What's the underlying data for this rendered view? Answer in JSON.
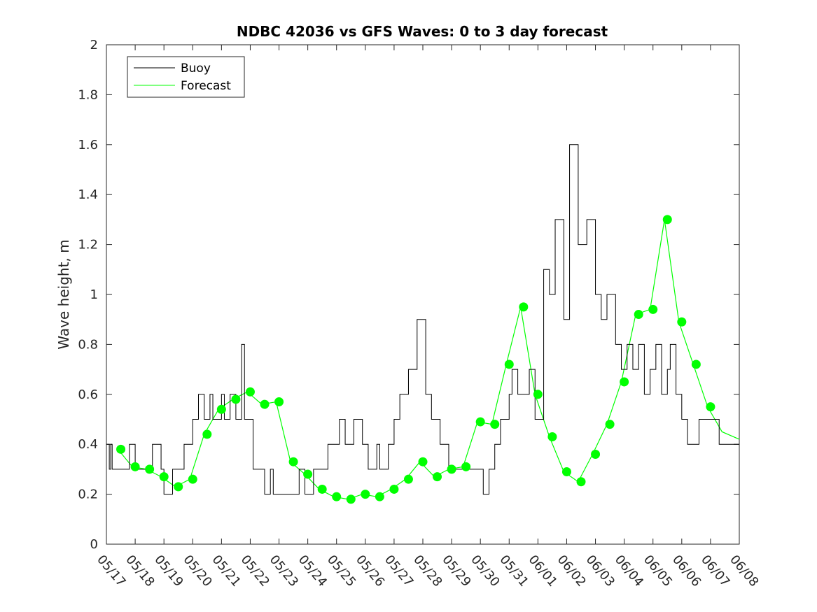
{
  "chart_data": {
    "type": "line",
    "title": "NDBC 42036 vs GFS Waves: 0 to 3 day forecast",
    "xlabel": "",
    "ylabel": "Wave height, m",
    "xlim": [
      "05/17",
      "06/08"
    ],
    "ylim": [
      0,
      2
    ],
    "x_ticks": [
      "05/17",
      "05/18",
      "05/19",
      "05/20",
      "05/21",
      "05/22",
      "05/23",
      "05/24",
      "05/25",
      "05/26",
      "05/27",
      "05/28",
      "05/29",
      "05/30",
      "05/31",
      "06/01",
      "06/02",
      "06/03",
      "06/04",
      "06/05",
      "06/06",
      "06/07",
      "06/08"
    ],
    "y_ticks": [
      0,
      0.2,
      0.4,
      0.6,
      0.8,
      1,
      1.2,
      1.4,
      1.6,
      1.8,
      2
    ],
    "y_tick_labels": [
      "0",
      "0.2",
      "0.4",
      "0.6",
      "0.8",
      "1",
      "1.2",
      "1.4",
      "1.6",
      "1.8",
      "2"
    ],
    "legend": {
      "position": "top-left",
      "entries": [
        "Buoy",
        "Forecast"
      ]
    },
    "colors": {
      "buoy": "#000000",
      "forecast": "#00ff00"
    },
    "buoy": {
      "name": "Buoy",
      "x": [
        0,
        0.1,
        0.15,
        0.2,
        0.3,
        0.5,
        0.8,
        1.0,
        1.3,
        1.5,
        1.6,
        1.9,
        2.0,
        2.3,
        2.5,
        2.7,
        3.0,
        3.1,
        3.2,
        3.4,
        3.6,
        3.7,
        3.9,
        4.0,
        4.1,
        4.3,
        4.5,
        4.7,
        4.8,
        5.1,
        5.3,
        5.5,
        5.7,
        5.8,
        6.0,
        6.1,
        6.3,
        6.5,
        6.7,
        6.9,
        7.0,
        7.2,
        7.5,
        7.7,
        7.9,
        8.1,
        8.3,
        8.6,
        8.9,
        9.1,
        9.4,
        9.5,
        9.8,
        10.0,
        10.2,
        10.5,
        10.8,
        11.1,
        11.3,
        11.6,
        11.9,
        12.2,
        12.6,
        12.9,
        13.1,
        13.3,
        13.5,
        13.7,
        14.0,
        14.1,
        14.3,
        14.5,
        14.7,
        14.9,
        15.0,
        15.2,
        15.4,
        15.6,
        15.9,
        16.1,
        16.4,
        16.7,
        17.0,
        17.2,
        17.4,
        17.7,
        17.9,
        18.1,
        18.3,
        18.5,
        18.7,
        18.9,
        19.1,
        19.3,
        19.5,
        19.6,
        19.8,
        20.0,
        20.2,
        20.4,
        20.6,
        20.8,
        21.0,
        21.3,
        21.6,
        22.0
      ],
      "y": [
        0.4,
        0.3,
        0.4,
        0.3,
        0.3,
        0.3,
        0.4,
        0.3,
        0.3,
        0.3,
        0.4,
        0.3,
        0.2,
        0.3,
        0.3,
        0.4,
        0.5,
        0.5,
        0.6,
        0.5,
        0.6,
        0.5,
        0.5,
        0.6,
        0.5,
        0.6,
        0.5,
        0.8,
        0.5,
        0.3,
        0.3,
        0.2,
        0.3,
        0.2,
        0.2,
        0.2,
        0.2,
        0.2,
        0.3,
        0.2,
        0.2,
        0.3,
        0.3,
        0.4,
        0.4,
        0.5,
        0.4,
        0.5,
        0.4,
        0.3,
        0.4,
        0.3,
        0.4,
        0.5,
        0.6,
        0.7,
        0.9,
        0.6,
        0.5,
        0.4,
        0.3,
        0.3,
        0.3,
        0.3,
        0.2,
        0.3,
        0.4,
        0.5,
        0.6,
        0.7,
        0.6,
        0.6,
        0.7,
        0.5,
        0.5,
        1.1,
        1.0,
        1.3,
        0.9,
        1.6,
        1.2,
        1.3,
        1.0,
        0.9,
        1.0,
        0.8,
        0.7,
        0.8,
        0.7,
        0.8,
        0.6,
        0.7,
        0.8,
        0.6,
        0.7,
        0.8,
        0.6,
        0.5,
        0.4,
        0.4,
        0.5,
        0.5,
        0.5,
        0.4,
        0.4,
        0.4
      ]
    },
    "forecast": {
      "name": "Forecast",
      "x": [
        0.4,
        0.9,
        1.4,
        1.9,
        2.4,
        2.9,
        3.4,
        3.9,
        4.4,
        4.9,
        5.4,
        5.9,
        6.4,
        6.9,
        7.4,
        7.9,
        8.4,
        8.9,
        9.4,
        9.9,
        10.4,
        10.9,
        11.4,
        11.9,
        12.4,
        12.9,
        13.4,
        13.9,
        14.4,
        14.9,
        15.4,
        15.9,
        16.4,
        16.9,
        17.4,
        17.9,
        18.4,
        18.9,
        19.4,
        19.9,
        20.4,
        20.9,
        21.4,
        22.0
      ],
      "y": [
        0.38,
        0.31,
        0.3,
        0.27,
        0.23,
        0.26,
        0.44,
        0.54,
        0.58,
        0.61,
        0.56,
        0.57,
        0.33,
        0.28,
        0.22,
        0.19,
        0.18,
        0.2,
        0.19,
        0.22,
        0.26,
        0.33,
        0.27,
        0.3,
        0.31,
        0.49,
        0.48,
        0.72,
        0.95,
        0.6,
        0.43,
        0.29,
        0.25,
        0.36,
        0.48,
        0.65,
        0.92,
        0.94,
        1.3,
        0.89,
        0.72,
        0.55,
        0.45,
        0.42
      ],
      "markers_x": [
        0.5,
        1.0,
        1.5,
        2.0,
        2.5,
        3.0,
        3.5,
        4.0,
        4.5,
        5.0,
        5.5,
        6.0,
        6.5,
        7.0,
        7.5,
        8.0,
        8.5,
        9.0,
        9.5,
        10.0,
        10.5,
        11.0,
        11.5,
        12.0,
        12.5,
        13.0,
        13.5,
        14.0,
        14.5,
        15.0,
        15.5,
        16.0,
        16.5,
        17.0,
        17.5,
        18.0,
        18.5,
        19.0,
        19.5,
        20.0,
        20.5,
        21.0
      ],
      "markers_y": [
        0.38,
        0.31,
        0.3,
        0.27,
        0.23,
        0.26,
        0.44,
        0.54,
        0.58,
        0.61,
        0.56,
        0.57,
        0.33,
        0.28,
        0.22,
        0.19,
        0.18,
        0.2,
        0.19,
        0.22,
        0.26,
        0.33,
        0.27,
        0.3,
        0.31,
        0.49,
        0.48,
        0.72,
        0.95,
        0.6,
        0.43,
        0.29,
        0.25,
        0.36,
        0.48,
        0.65,
        0.92,
        0.94,
        1.3,
        0.89,
        0.72,
        0.55
      ]
    }
  }
}
